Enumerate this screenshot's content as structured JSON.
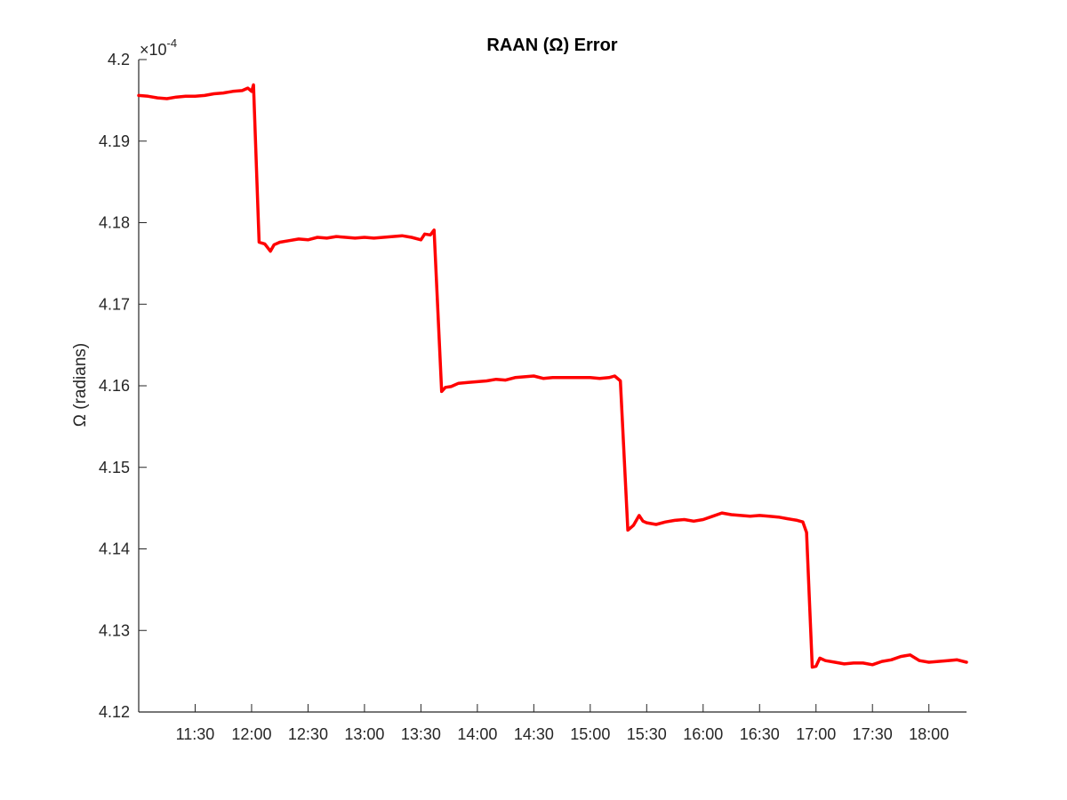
{
  "chart_data": {
    "type": "line",
    "title": "RAAN (Ω) Error",
    "ylabel": "Ω (radians)",
    "xlabel": "",
    "y_exponent": {
      "base": "×10",
      "power": "-4"
    },
    "ylim": [
      4.12,
      4.2
    ],
    "yticks": [
      4.12,
      4.13,
      4.14,
      4.15,
      4.16,
      4.17,
      4.18,
      4.19,
      4.2
    ],
    "ytick_labels": [
      "4.12",
      "4.13",
      "4.14",
      "4.15",
      "4.16",
      "4.17",
      "4.18",
      "4.19",
      "4.2"
    ],
    "xlim": [
      "11:00",
      "18:20"
    ],
    "xticks": [
      "11:30",
      "12:00",
      "12:30",
      "13:00",
      "13:30",
      "14:00",
      "14:30",
      "15:00",
      "15:30",
      "16:00",
      "16:30",
      "17:00",
      "17:30",
      "18:00"
    ],
    "grid": false,
    "line_color": "#ff0000",
    "series": [
      {
        "points": [
          [
            "11:00",
            4.1956
          ],
          [
            "11:05",
            4.1955
          ],
          [
            "11:10",
            4.1953
          ],
          [
            "11:15",
            4.1952
          ],
          [
            "11:20",
            4.1954
          ],
          [
            "11:25",
            4.1955
          ],
          [
            "11:30",
            4.1955
          ],
          [
            "11:35",
            4.1956
          ],
          [
            "11:40",
            4.1958
          ],
          [
            "11:45",
            4.1959
          ],
          [
            "11:50",
            4.1961
          ],
          [
            "11:55",
            4.1962
          ],
          [
            "11:58",
            4.1965
          ],
          [
            "12:00",
            4.1961
          ],
          [
            "12:01",
            4.1969
          ],
          [
            "12:04",
            4.1776
          ],
          [
            "12:07",
            4.1774
          ],
          [
            "12:10",
            4.1765
          ],
          [
            "12:12",
            4.1773
          ],
          [
            "12:15",
            4.1776
          ],
          [
            "12:20",
            4.1778
          ],
          [
            "12:25",
            4.178
          ],
          [
            "12:30",
            4.1779
          ],
          [
            "12:35",
            4.1782
          ],
          [
            "12:40",
            4.1781
          ],
          [
            "12:45",
            4.1783
          ],
          [
            "12:50",
            4.1782
          ],
          [
            "12:55",
            4.1781
          ],
          [
            "13:00",
            4.1782
          ],
          [
            "13:05",
            4.1781
          ],
          [
            "13:10",
            4.1782
          ],
          [
            "13:15",
            4.1783
          ],
          [
            "13:20",
            4.1784
          ],
          [
            "13:25",
            4.1782
          ],
          [
            "13:30",
            4.1779
          ],
          [
            "13:32",
            4.1786
          ],
          [
            "13:35",
            4.1785
          ],
          [
            "13:37",
            4.1791
          ],
          [
            "13:41",
            4.1593
          ],
          [
            "13:43",
            4.1598
          ],
          [
            "13:46",
            4.1599
          ],
          [
            "13:50",
            4.1603
          ],
          [
            "13:55",
            4.1604
          ],
          [
            "14:00",
            4.1605
          ],
          [
            "14:05",
            4.1606
          ],
          [
            "14:10",
            4.1608
          ],
          [
            "14:15",
            4.1607
          ],
          [
            "14:20",
            4.161
          ],
          [
            "14:25",
            4.1611
          ],
          [
            "14:30",
            4.1612
          ],
          [
            "14:35",
            4.1609
          ],
          [
            "14:40",
            4.161
          ],
          [
            "14:45",
            4.161
          ],
          [
            "14:50",
            4.161
          ],
          [
            "14:55",
            4.161
          ],
          [
            "15:00",
            4.161
          ],
          [
            "15:05",
            4.1609
          ],
          [
            "15:10",
            4.161
          ],
          [
            "15:13",
            4.1612
          ],
          [
            "15:16",
            4.1606
          ],
          [
            "15:20",
            4.1423
          ],
          [
            "15:23",
            4.1429
          ],
          [
            "15:26",
            4.1441
          ],
          [
            "15:28",
            4.1434
          ],
          [
            "15:30",
            4.1432
          ],
          [
            "15:35",
            4.143
          ],
          [
            "15:40",
            4.1433
          ],
          [
            "15:45",
            4.1435
          ],
          [
            "15:50",
            4.1436
          ],
          [
            "15:55",
            4.1434
          ],
          [
            "16:00",
            4.1436
          ],
          [
            "16:05",
            4.144
          ],
          [
            "16:10",
            4.1444
          ],
          [
            "16:15",
            4.1442
          ],
          [
            "16:20",
            4.1441
          ],
          [
            "16:25",
            4.144
          ],
          [
            "16:30",
            4.1441
          ],
          [
            "16:35",
            4.144
          ],
          [
            "16:40",
            4.1439
          ],
          [
            "16:45",
            4.1437
          ],
          [
            "16:50",
            4.1435
          ],
          [
            "16:53",
            4.1433
          ],
          [
            "16:55",
            4.142
          ],
          [
            "16:58",
            4.1255
          ],
          [
            "17:00",
            4.1256
          ],
          [
            "17:02",
            4.1266
          ],
          [
            "17:05",
            4.1263
          ],
          [
            "17:10",
            4.1261
          ],
          [
            "17:15",
            4.1259
          ],
          [
            "17:20",
            4.126
          ],
          [
            "17:25",
            4.126
          ],
          [
            "17:30",
            4.1258
          ],
          [
            "17:35",
            4.1262
          ],
          [
            "17:40",
            4.1264
          ],
          [
            "17:45",
            4.1268
          ],
          [
            "17:50",
            4.127
          ],
          [
            "17:55",
            4.1263
          ],
          [
            "18:00",
            4.1261
          ],
          [
            "18:05",
            4.1262
          ],
          [
            "18:10",
            4.1263
          ],
          [
            "18:15",
            4.1264
          ],
          [
            "18:20",
            4.1261
          ]
        ]
      }
    ]
  }
}
